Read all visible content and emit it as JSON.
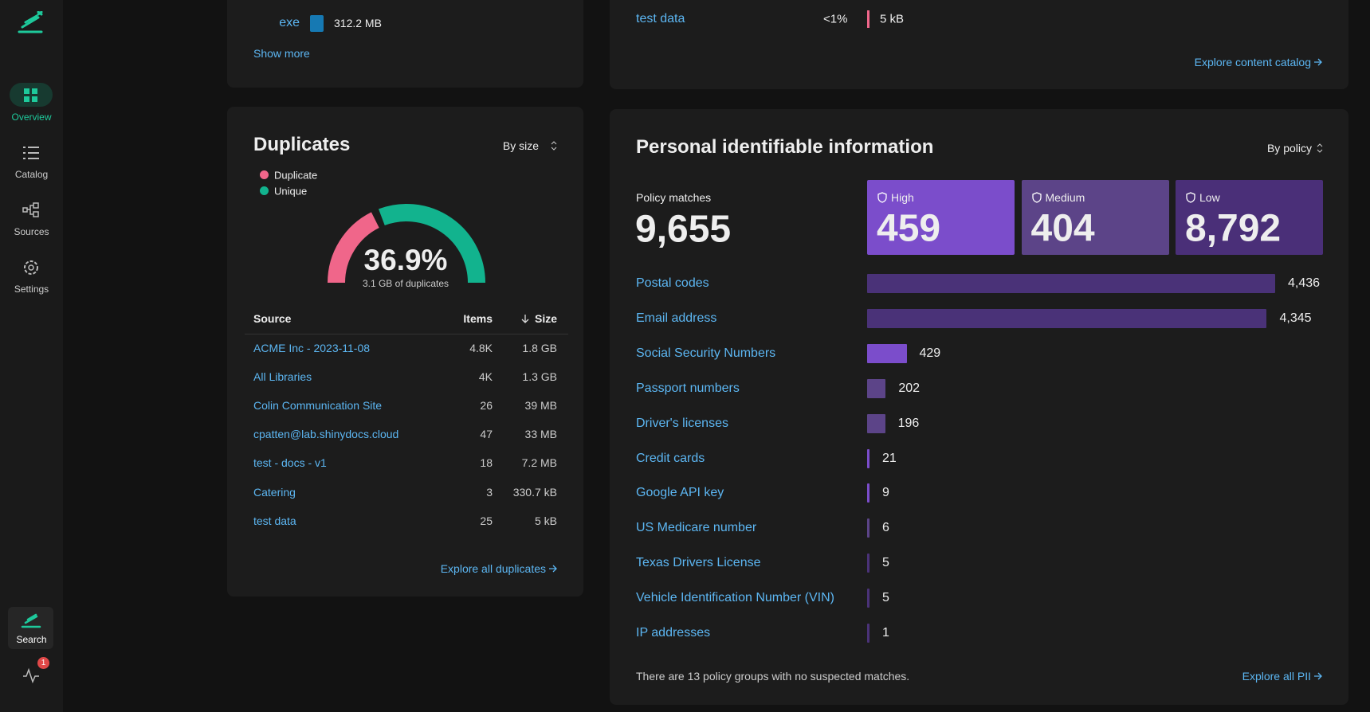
{
  "sidebar": {
    "nav": [
      "Overview",
      "Catalog",
      "Sources",
      "Settings"
    ],
    "search": "Search",
    "badge": "1"
  },
  "storage_panel": {
    "rows": [
      {
        "type": "exe",
        "size": "312.2 MB"
      }
    ],
    "show_more": "Show more"
  },
  "content_panel": {
    "row": {
      "name": "test data",
      "percent": "<1%",
      "size": "5 kB"
    },
    "link": "Explore content catalog"
  },
  "duplicates": {
    "title": "Duplicates",
    "sort": "By size",
    "legend": [
      {
        "name": "Duplicate",
        "color": "#f0668a"
      },
      {
        "name": "Unique",
        "color": "#12b38e"
      }
    ],
    "gauge": {
      "value": 36.9,
      "label": "36.9%",
      "caption": "3.1 GB of duplicates"
    },
    "columns": [
      "Source",
      "Items",
      "Size"
    ],
    "rows": [
      [
        "ACME Inc - 2023-11-08",
        "4.8K",
        "1.8 GB"
      ],
      [
        "All Libraries",
        "4K",
        "1.3 GB"
      ],
      [
        "Colin Communication Site",
        "26",
        "39 MB"
      ],
      [
        "cpatten@lab.shinydocs.cloud",
        "47",
        "33 MB"
      ],
      [
        "test - docs - v1",
        "18",
        "7.2 MB"
      ],
      [
        "Catering",
        "3",
        "330.7 kB"
      ],
      [
        "test data",
        "25",
        "5 kB"
      ]
    ],
    "link": "Explore all duplicates"
  },
  "pii": {
    "title": "Personal identifiable information",
    "sort": "By policy",
    "total_label": "Policy matches",
    "total": "9,655",
    "cards": [
      {
        "name": "High",
        "value": "459",
        "color": "#7b4dcb"
      },
      {
        "name": "Medium",
        "value": "404",
        "color": "#5c4488"
      },
      {
        "name": "Low",
        "value": "8,792",
        "color": "#4a2f78"
      }
    ],
    "bars": [
      {
        "name": "Postal codes",
        "value": 4436,
        "label": "4,436",
        "color": "#4a3278"
      },
      {
        "name": "Email address",
        "value": 4345,
        "label": "4,345",
        "color": "#4a3278"
      },
      {
        "name": "Social Security Numbers",
        "value": 429,
        "color": "#7b4dcb"
      },
      {
        "name": "Passport numbers",
        "value": 202,
        "color": "#5c4488"
      },
      {
        "name": "Driver's licenses",
        "value": 196,
        "color": "#5c4488"
      },
      {
        "name": "Credit cards",
        "value": 21,
        "color": "#7b4dcb"
      },
      {
        "name": "Google API key",
        "value": 9,
        "color": "#7b4dcb"
      },
      {
        "name": "US Medicare number",
        "value": 6,
        "color": "#5c4488"
      },
      {
        "name": "Texas Drivers License",
        "value": 5,
        "color": "#4a3278"
      },
      {
        "name": "Vehicle Identification Number (VIN)",
        "value": 5,
        "color": "#4a3278"
      },
      {
        "name": "IP addresses",
        "value": 1,
        "color": "#4a3278"
      }
    ],
    "note": "There are 13 policy groups with no suspected matches.",
    "link": "Explore all PII"
  }
}
